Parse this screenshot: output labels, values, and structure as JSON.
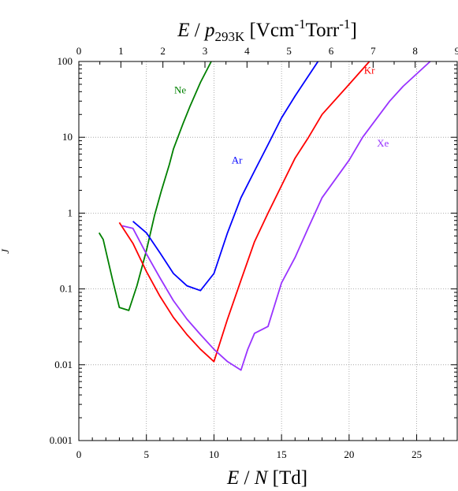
{
  "chart_data": {
    "type": "line",
    "x_axis": {
      "label_main": "E",
      "label_sep": " / ",
      "label_var": "N",
      "label_unit": " [Td]",
      "lim": [
        0,
        28
      ],
      "ticks": [
        0,
        5,
        10,
        15,
        20,
        25
      ]
    },
    "top_axis": {
      "label_e": "E",
      "label_sep": " / ",
      "label_p": "p",
      "label_sub": "293K",
      "label_unit_1": " [Vcm",
      "label_sup_1": "-1",
      "label_unit_2": "Torr",
      "label_sup_2": "-1",
      "label_close": "]",
      "lim": [
        0,
        9
      ],
      "ticks": [
        0,
        1,
        2,
        3,
        4,
        5,
        6,
        7,
        8,
        9
      ]
    },
    "y_axis": {
      "label": "J",
      "scale": "log",
      "lim": [
        0.001,
        100
      ],
      "ticks": [
        0.001,
        0.01,
        0.1,
        1,
        10,
        100
      ],
      "tick_labels": [
        "0.001",
        "0.01",
        "0.1",
        "1",
        "10",
        "100"
      ]
    },
    "grid": true,
    "series": [
      {
        "name": "Ne",
        "color": "#008000",
        "label_pos": [
          7.5,
          38
        ],
        "points": [
          [
            1.5,
            0.55
          ],
          [
            1.8,
            0.45
          ],
          [
            2.5,
            0.13
          ],
          [
            3,
            0.057
          ],
          [
            3.7,
            0.052
          ],
          [
            4.3,
            0.11
          ],
          [
            5,
            0.32
          ],
          [
            5.6,
            0.93
          ],
          [
            6.1,
            1.95
          ],
          [
            6.7,
            4.4
          ],
          [
            7,
            7.0
          ],
          [
            7.7,
            15
          ],
          [
            8.2,
            25
          ],
          [
            9,
            53
          ],
          [
            9.8,
            100
          ]
        ]
      },
      {
        "name": "Ar",
        "color": "#0000ff",
        "label_pos": [
          11.7,
          4.5
        ],
        "points": [
          [
            4,
            0.78
          ],
          [
            5,
            0.55
          ],
          [
            6,
            0.3
          ],
          [
            7,
            0.16
          ],
          [
            8,
            0.11
          ],
          [
            9,
            0.095
          ],
          [
            10,
            0.16
          ],
          [
            11,
            0.55
          ],
          [
            12,
            1.6
          ],
          [
            13,
            3.6
          ],
          [
            14,
            8
          ],
          [
            15,
            18
          ],
          [
            16,
            35
          ],
          [
            17.7,
            100
          ]
        ]
      },
      {
        "name": "Kr",
        "color": "#ff0000",
        "label_pos": [
          21.5,
          69
        ],
        "points": [
          [
            3,
            0.75
          ],
          [
            4,
            0.4
          ],
          [
            5,
            0.17
          ],
          [
            6,
            0.08
          ],
          [
            7,
            0.042
          ],
          [
            8,
            0.025
          ],
          [
            9,
            0.016
          ],
          [
            10,
            0.011
          ],
          [
            11,
            0.04
          ],
          [
            12,
            0.13
          ],
          [
            13,
            0.42
          ],
          [
            14,
            1.0
          ],
          [
            15,
            2.3
          ],
          [
            16,
            5.3
          ],
          [
            17,
            10
          ],
          [
            18,
            20
          ],
          [
            20,
            50
          ],
          [
            21.5,
            100
          ]
        ]
      },
      {
        "name": "Xe",
        "color": "#9933ff",
        "label_pos": [
          22.5,
          7.5
        ],
        "points": [
          [
            3.2,
            0.68
          ],
          [
            4,
            0.63
          ],
          [
            5,
            0.29
          ],
          [
            6,
            0.14
          ],
          [
            7,
            0.07
          ],
          [
            8,
            0.04
          ],
          [
            9,
            0.025
          ],
          [
            10,
            0.016
          ],
          [
            11,
            0.011
          ],
          [
            12,
            0.0085
          ],
          [
            12.5,
            0.016
          ],
          [
            13,
            0.026
          ],
          [
            14,
            0.032
          ],
          [
            15,
            0.12
          ],
          [
            16,
            0.26
          ],
          [
            17,
            0.65
          ],
          [
            18,
            1.6
          ],
          [
            20,
            5
          ],
          [
            21,
            10
          ],
          [
            23,
            30
          ],
          [
            24,
            47
          ],
          [
            26,
            100
          ]
        ]
      }
    ]
  }
}
